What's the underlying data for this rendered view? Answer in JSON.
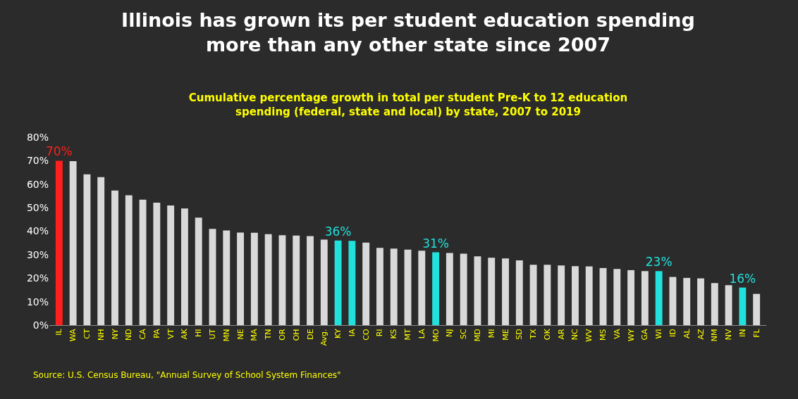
{
  "chart_data": {
    "type": "bar",
    "title": "Illinois has grown its per student education spending more than any other state since 2007",
    "subtitle": "Cumulative percentage growth in total per student Pre-K to 12 education spending (federal, state and local) by state, 2007 to 2019",
    "categories": [
      "IL",
      "WA",
      "CT",
      "NH",
      "NY",
      "ND",
      "CA",
      "PA",
      "VT",
      "AK",
      "HI",
      "UT",
      "MN",
      "NE",
      "MA",
      "TN",
      "OR",
      "OH",
      "DE",
      "Avg.",
      "KY",
      "IA",
      "CO",
      "RI",
      "KS",
      "MT",
      "LA",
      "MO",
      "NJ",
      "SC",
      "MD",
      "MI",
      "ME",
      "SD",
      "TX",
      "OK",
      "AR",
      "NC",
      "WV",
      "MS",
      "VA",
      "WY",
      "GA",
      "WI",
      "ID",
      "AL",
      "AZ",
      "NM",
      "NV",
      "IN",
      "FL"
    ],
    "values": [
      70,
      69.8,
      64.2,
      63.0,
      57.3,
      55.3,
      53.4,
      52.1,
      50.9,
      49.7,
      45.8,
      41.0,
      40.3,
      39.4,
      39.3,
      38.7,
      38.3,
      38.1,
      37.9,
      36.4,
      36,
      35.9,
      35.1,
      32.9,
      32.6,
      32.1,
      31.7,
      31,
      30.7,
      30.4,
      29.3,
      28.7,
      28.4,
      27.6,
      25.7,
      25.7,
      25.4,
      25.1,
      25.0,
      24.3,
      23.9,
      23.4,
      23.0,
      23,
      20.5,
      20.1,
      19.9,
      17.9,
      17.0,
      16,
      13.3
    ],
    "value_labels": [
      "70%",
      null,
      null,
      null,
      null,
      null,
      null,
      null,
      null,
      null,
      null,
      null,
      null,
      null,
      null,
      null,
      null,
      null,
      null,
      null,
      "36%",
      null,
      null,
      null,
      null,
      null,
      null,
      "31%",
      null,
      null,
      null,
      null,
      null,
      null,
      null,
      null,
      null,
      null,
      null,
      null,
      null,
      null,
      null,
      "23%",
      null,
      null,
      null,
      null,
      null,
      "16%",
      null
    ],
    "colors": [
      "#ff1f1f",
      "#d9d9d9",
      "#d9d9d9",
      "#d9d9d9",
      "#d9d9d9",
      "#d9d9d9",
      "#d9d9d9",
      "#d9d9d9",
      "#d9d9d9",
      "#d9d9d9",
      "#d9d9d9",
      "#d9d9d9",
      "#d9d9d9",
      "#d9d9d9",
      "#d9d9d9",
      "#d9d9d9",
      "#d9d9d9",
      "#d9d9d9",
      "#d9d9d9",
      "#d9d9d9",
      "#22e0dc",
      "#22e0dc",
      "#d9d9d9",
      "#d9d9d9",
      "#d9d9d9",
      "#d9d9d9",
      "#d9d9d9",
      "#22e0dc",
      "#d9d9d9",
      "#d9d9d9",
      "#d9d9d9",
      "#d9d9d9",
      "#d9d9d9",
      "#d9d9d9",
      "#d9d9d9",
      "#d9d9d9",
      "#d9d9d9",
      "#d9d9d9",
      "#d9d9d9",
      "#d9d9d9",
      "#d9d9d9",
      "#d9d9d9",
      "#d9d9d9",
      "#22e0dc",
      "#d9d9d9",
      "#d9d9d9",
      "#d9d9d9",
      "#d9d9d9",
      "#d9d9d9",
      "#22e0dc",
      "#d9d9d9"
    ],
    "ylim": [
      0,
      80
    ],
    "yticks": [
      {
        "value": 0,
        "label": "0%"
      },
      {
        "value": 10,
        "label": "10%"
      },
      {
        "value": 20,
        "label": "20%"
      },
      {
        "value": 30,
        "label": "30%"
      },
      {
        "value": 40,
        "label": "40%"
      },
      {
        "value": 50,
        "label": "50%"
      },
      {
        "value": 60,
        "label": "60%"
      },
      {
        "value": 70,
        "label": "70%"
      },
      {
        "value": 80,
        "label": "80%"
      }
    ],
    "grid": false,
    "legend": false,
    "annotations": [
      "Source: U.S. Census Bureau, \"Annual Survey of School System Finances\""
    ]
  }
}
